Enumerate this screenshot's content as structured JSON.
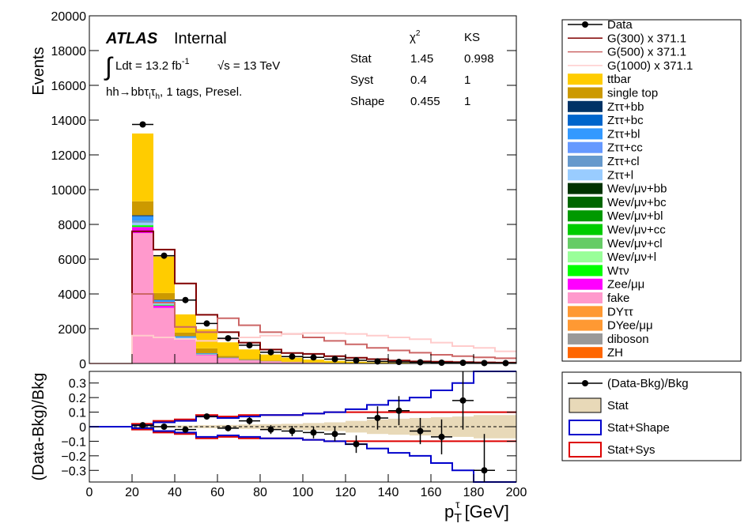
{
  "chart_data": [
    {
      "type": "bar",
      "panel": "main",
      "ylabel": "Events",
      "ylim": [
        0,
        20000
      ],
      "yticks": [
        "0",
        "2000",
        "4000",
        "6000",
        "8000",
        "10000",
        "12000",
        "14000",
        "16000",
        "18000",
        "20000"
      ],
      "bin_edges": [
        0,
        10,
        20,
        30,
        40,
        50,
        60,
        70,
        80,
        90,
        100,
        110,
        120,
        130,
        140,
        150,
        160,
        170,
        180,
        190,
        200
      ],
      "stack": [
        {
          "name": "fake",
          "color": "#ff99cc",
          "values": [
            0,
            0,
            7500,
            3200,
            1350,
            480,
            280,
            170,
            110,
            70,
            45,
            30,
            20,
            12,
            8,
            5,
            3,
            2,
            1,
            1
          ]
        },
        {
          "name": "Zee/μμ",
          "color": "#ff00ff",
          "values": [
            0,
            0,
            350,
            130,
            60,
            30,
            15,
            8,
            5,
            3,
            2,
            1,
            1,
            0,
            0,
            0,
            0,
            0,
            0,
            0
          ]
        },
        {
          "name": "Wτν",
          "color": "#00ff00",
          "values": [
            0,
            0,
            100,
            50,
            25,
            12,
            6,
            3,
            2,
            1,
            1,
            0,
            0,
            0,
            0,
            0,
            0,
            0,
            0,
            0
          ]
        },
        {
          "name": "Zττ+l",
          "color": "#99ccff",
          "values": [
            0,
            0,
            150,
            70,
            30,
            15,
            8,
            4,
            2,
            1,
            1,
            0,
            0,
            0,
            0,
            0,
            0,
            0,
            0,
            0
          ]
        },
        {
          "name": "Zττ+cl",
          "color": "#6699cc",
          "values": [
            0,
            0,
            120,
            60,
            25,
            12,
            6,
            3,
            2,
            1,
            0,
            0,
            0,
            0,
            0,
            0,
            0,
            0,
            0,
            0
          ]
        },
        {
          "name": "Zττ+bl",
          "color": "#3399ff",
          "values": [
            0,
            0,
            250,
            130,
            70,
            35,
            18,
            10,
            6,
            3,
            2,
            1,
            1,
            0,
            0,
            0,
            0,
            0,
            0,
            0
          ]
        },
        {
          "name": "Zττ+bb",
          "color": "#003366",
          "values": [
            0,
            0,
            60,
            30,
            15,
            8,
            4,
            2,
            1,
            1,
            0,
            0,
            0,
            0,
            0,
            0,
            0,
            0,
            0,
            0
          ]
        },
        {
          "name": "single top",
          "color": "#cc9900",
          "values": [
            0,
            0,
            800,
            380,
            200,
            280,
            100,
            60,
            40,
            25,
            15,
            10,
            6,
            4,
            2,
            1,
            1,
            0,
            0,
            0
          ]
        },
        {
          "name": "ttbar",
          "color": "#ffcc00",
          "values": [
            0,
            0,
            3900,
            2100,
            1050,
            1100,
            780,
            550,
            350,
            230,
            160,
            110,
            75,
            50,
            35,
            22,
            15,
            10,
            6,
            4
          ]
        }
      ],
      "data": {
        "name": "Data",
        "values": [
          null,
          null,
          13750,
          6200,
          3650,
          2300,
          1450,
          1050,
          650,
          400,
          350,
          250,
          180,
          120,
          90,
          70,
          45,
          40,
          25,
          20
        ]
      },
      "signals": [
        {
          "name": "G(300) x 371.1",
          "color": "#800000",
          "values": [
            0,
            0,
            7600,
            6550,
            4600,
            2800,
            1800,
            1200,
            800,
            600,
            550,
            420,
            330,
            250,
            170,
            120,
            100,
            80,
            60,
            50
          ]
        },
        {
          "name": "G(500) x 371.1",
          "color": "#cc6666",
          "values": [
            0,
            0,
            4000,
            3500,
            2100,
            1800,
            2600,
            2200,
            1800,
            1700,
            1500,
            1300,
            1100,
            900,
            750,
            620,
            500,
            420,
            350,
            300
          ]
        },
        {
          "name": "G(1000) x 371.1",
          "color": "#ffcccc",
          "values": [
            0,
            0,
            1600,
            1500,
            1400,
            1300,
            1400,
            1500,
            1600,
            1700,
            1750,
            1750,
            1700,
            1600,
            1500,
            1400,
            1200,
            1000,
            900,
            700
          ]
        }
      ],
      "annotations": {
        "atlas": "ATLAS",
        "internal": "Internal",
        "lumi": "Ldt = 13.2 fb",
        "lumi_exp": "-1",
        "energy": "√s = 13 TeV",
        "selection": "hh→bbτ",
        "selection_rest": ", 1 tags, Presel."
      },
      "stats_table": {
        "headers": [
          "",
          "χ",
          "KS"
        ],
        "chi_sup": "2",
        "rows": [
          [
            "Stat",
            "1.45",
            "0.998"
          ],
          [
            "Syst",
            "0.4",
            "1"
          ],
          [
            "Shape",
            "0.455",
            "1"
          ]
        ]
      }
    },
    {
      "type": "line",
      "panel": "ratio",
      "ylabel": "(Data-Bkg)/Bkg",
      "xlabel": "p",
      "xlabel_unit": "[GeV]",
      "ylim": [
        -0.38,
        0.38
      ],
      "yticks": [
        "0.3",
        "0.2",
        "0.1",
        "0",
        "−0.1",
        "−0.2",
        "−0.3"
      ],
      "xticks": [
        "0",
        "20",
        "40",
        "60",
        "80",
        "100",
        "120",
        "140",
        "160",
        "180",
        "200"
      ],
      "ratio": {
        "name": "(Data-Bkg)/Bkg",
        "x": [
          25,
          35,
          45,
          55,
          65,
          75,
          85,
          95,
          105,
          115,
          125,
          135,
          145,
          155,
          165,
          175,
          185
        ],
        "y": [
          0.01,
          0,
          -0.02,
          0.07,
          -0.01,
          0.04,
          -0.02,
          -0.03,
          -0.04,
          -0.05,
          -0.12,
          0.06,
          0.11,
          -0.03,
          -0.07,
          0.18,
          -0.3
        ],
        "err": [
          0.015,
          0.015,
          0.015,
          0.02,
          0.02,
          0.025,
          0.03,
          0.035,
          0.04,
          0.05,
          0.06,
          0.08,
          0.1,
          0.09,
          0.12,
          0.2,
          0.25
        ]
      },
      "stat_band": [
        0,
        0,
        0.005,
        0.006,
        0.008,
        0.01,
        0.012,
        0.015,
        0.018,
        0.02,
        0.025,
        0.03,
        0.04,
        0.05,
        0.055,
        0.06,
        0.065,
        0.07,
        0.08,
        0.08
      ],
      "stat_shape_band": [
        0,
        0,
        0.01,
        0.03,
        0.04,
        0.07,
        0.06,
        0.07,
        0.08,
        0.08,
        0.09,
        0.1,
        0.12,
        0.15,
        0.18,
        0.2,
        0.25,
        0.3,
        0.38,
        0.38
      ],
      "stat_sys_band": [
        0,
        0,
        0.02,
        0.04,
        0.05,
        0.08,
        0.07,
        0.08,
        0.08,
        0.08,
        0.09,
        0.1,
        0.1,
        0.1,
        0.1,
        0.1,
        0.1,
        0.1,
        0.1,
        0.1
      ]
    }
  ],
  "legend_main": [
    "Data",
    "G(300) x 371.1",
    "G(500) x 371.1",
    "G(1000) x 371.1",
    "ttbar",
    "single top",
    "Zττ+bb",
    "Zττ+bc",
    "Zττ+bl",
    "Zττ+cc",
    "Zττ+cl",
    "Zττ+l",
    "Wev/μν+bb",
    "Wev/μν+bc",
    "Wev/μν+bl",
    "Wev/μν+cc",
    "Wev/μν+cl",
    "Wev/μν+l",
    "Wτν",
    "Zee/μμ",
    "fake",
    "DYττ",
    "DYee/μμ",
    "diboson",
    "ZH"
  ],
  "legend_main_colors": [
    "",
    "#800000",
    "#cc6666",
    "#ffcccc",
    "#ffcc00",
    "#cc9900",
    "#003366",
    "#0066cc",
    "#3399ff",
    "#6699ff",
    "#6699cc",
    "#99ccff",
    "#003300",
    "#006600",
    "#009900",
    "#00cc00",
    "#66cc66",
    "#99ff99",
    "#00ff00",
    "#ff00ff",
    "#ff99cc",
    "#ff9933",
    "#ff9933",
    "#999999",
    "#ff6600"
  ],
  "legend_ratio": [
    "(Data-Bkg)/Bkg",
    "Stat",
    "Stat+Shape",
    "Stat+Sys"
  ]
}
